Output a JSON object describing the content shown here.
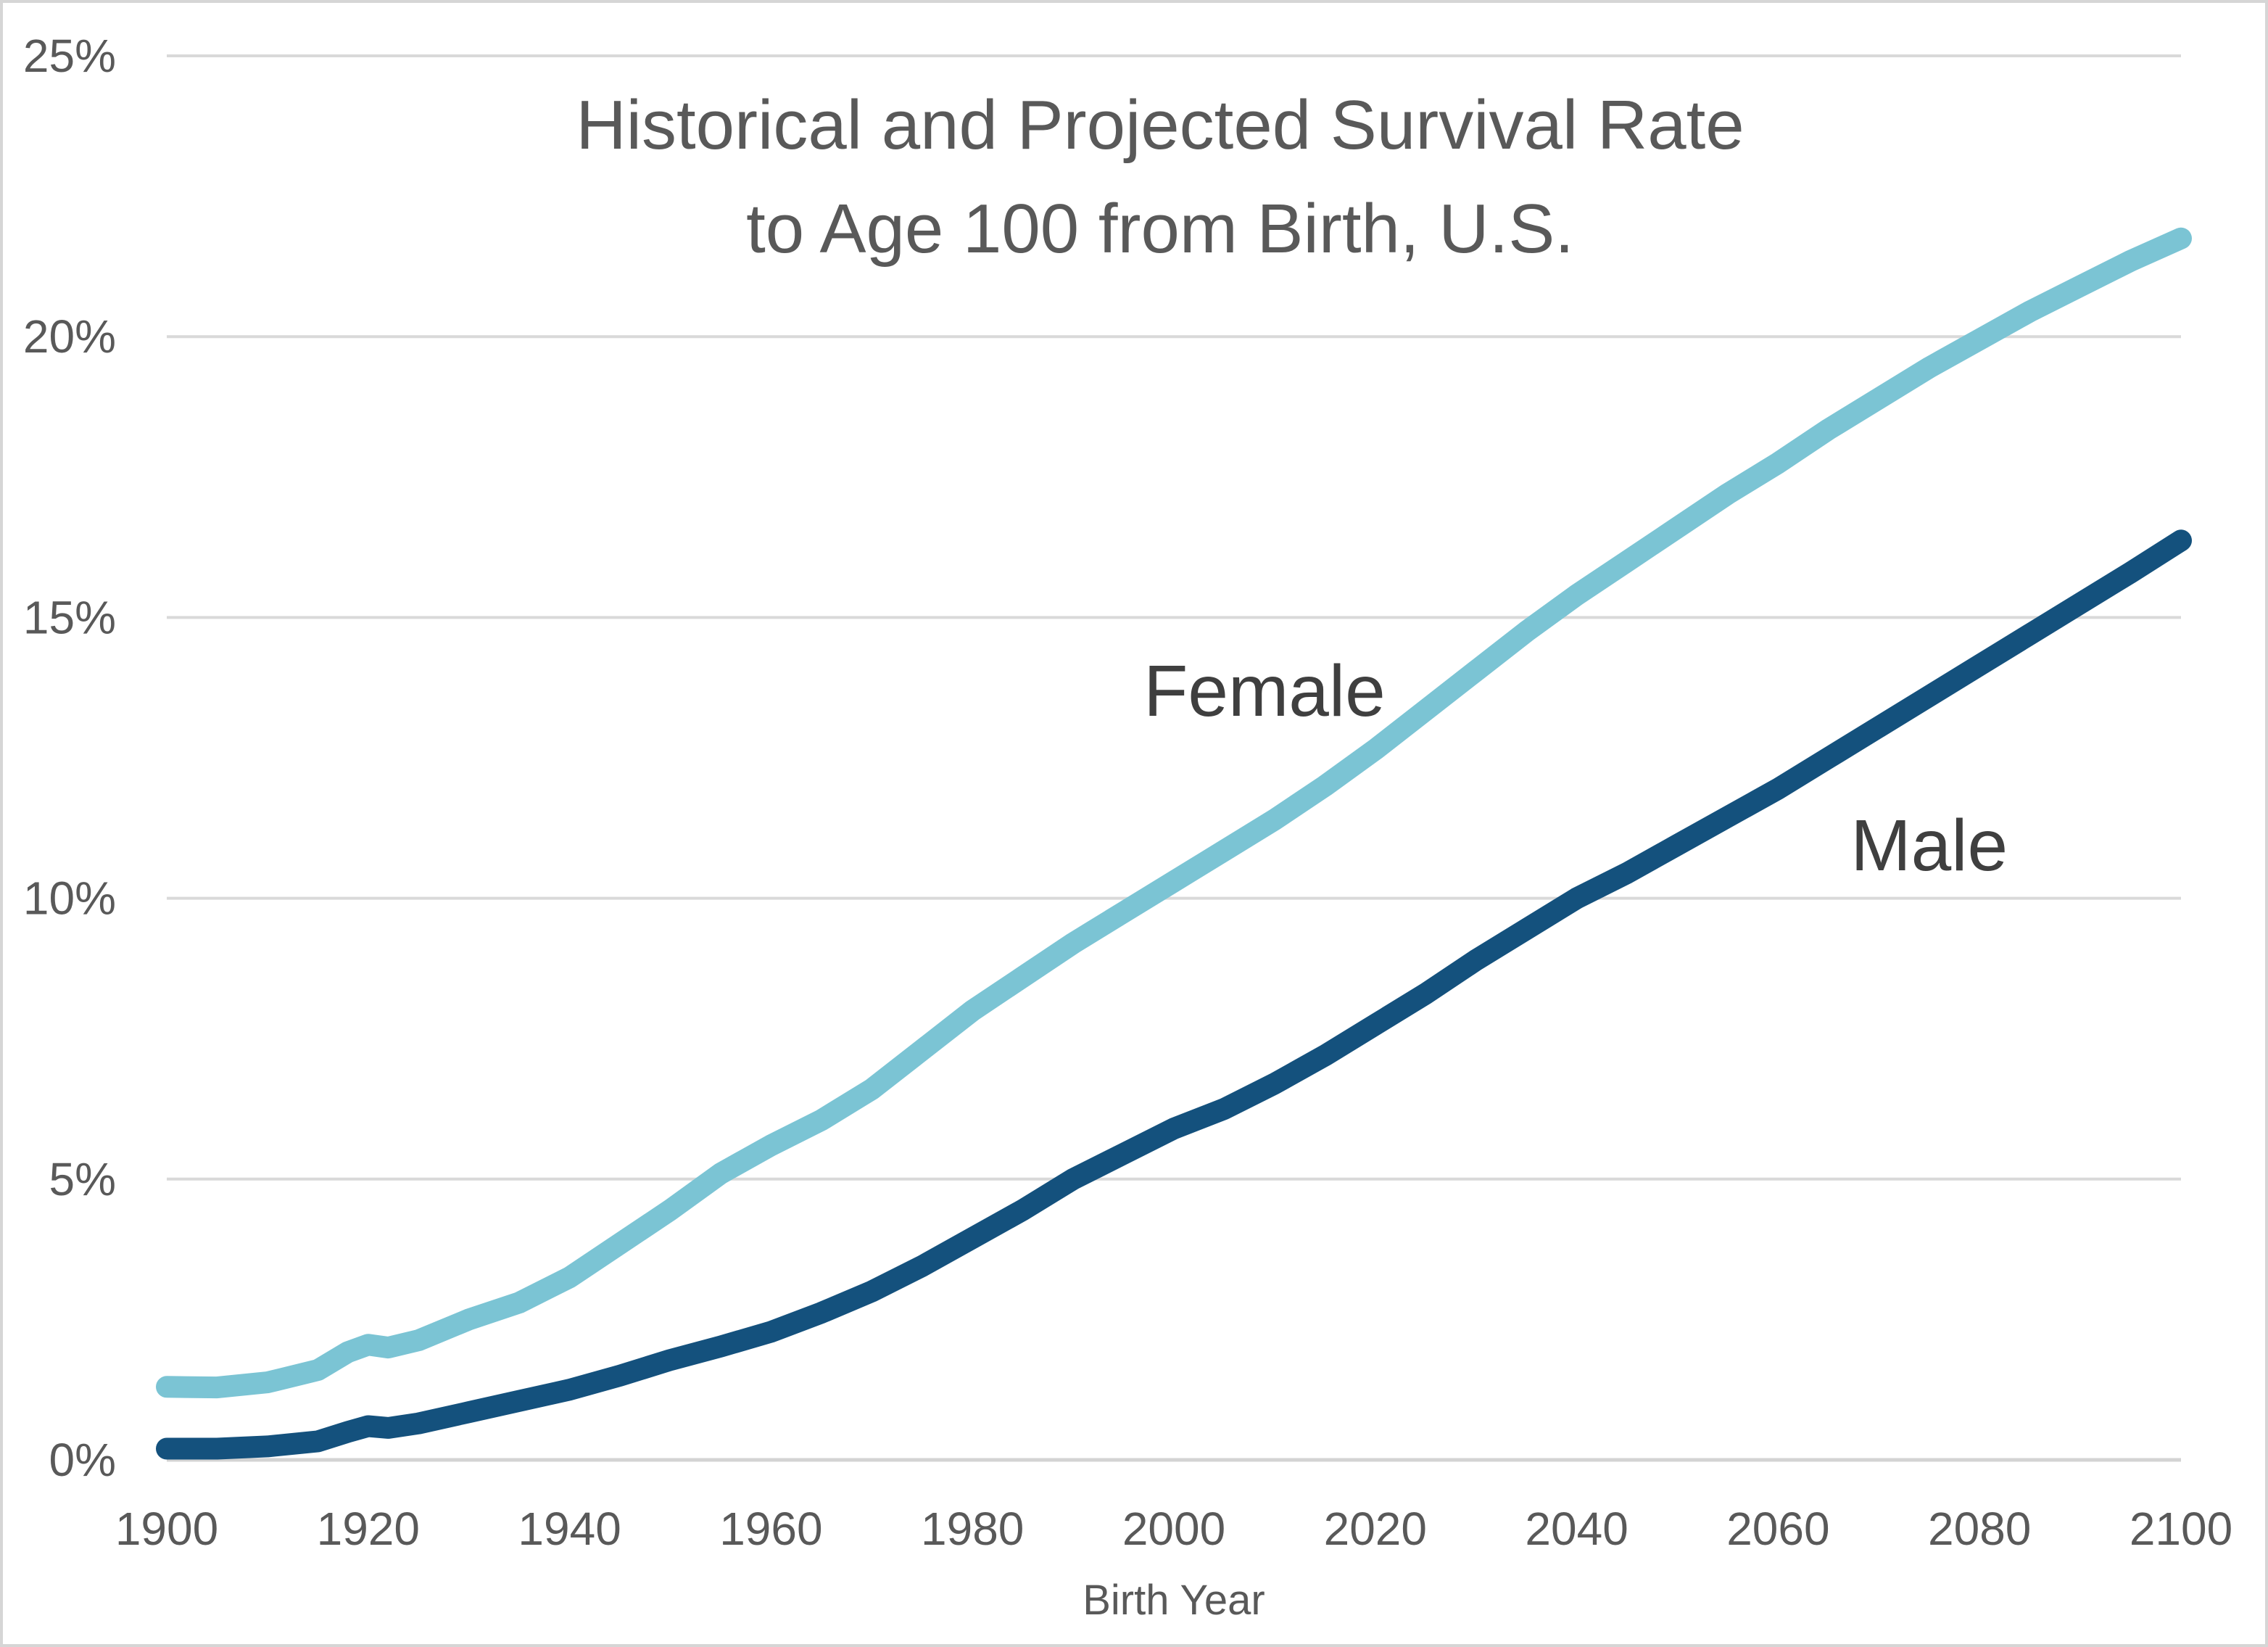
{
  "page": {
    "background": "#ffffff",
    "frame_border_color": "#d6d6d6"
  },
  "chart_data": {
    "type": "line",
    "title_lines": [
      "Historical and Projected Survival Rate",
      "to Age 100 from Birth, U.S."
    ],
    "xlabel": "Birth Year",
    "ylabel": "",
    "xlim": [
      1900,
      2100
    ],
    "ylim": [
      0,
      25
    ],
    "grid": true,
    "legend_position": "inline-labels",
    "grid_color": "#d9d9d9",
    "axis_line_color": "#d3d3d3",
    "title_color": "#595959",
    "tick_label_color": "#595959",
    "series_label_color": "#3f3f3f",
    "x_ticks": [
      {
        "value": 1900,
        "label": "1900"
      },
      {
        "value": 1920,
        "label": "1920"
      },
      {
        "value": 1940,
        "label": "1940"
      },
      {
        "value": 1960,
        "label": "1960"
      },
      {
        "value": 1980,
        "label": "1980"
      },
      {
        "value": 2000,
        "label": "2000"
      },
      {
        "value": 2020,
        "label": "2020"
      },
      {
        "value": 2040,
        "label": "2040"
      },
      {
        "value": 2060,
        "label": "2060"
      },
      {
        "value": 2080,
        "label": "2080"
      },
      {
        "value": 2100,
        "label": "2100"
      }
    ],
    "y_ticks": [
      {
        "value": 0,
        "label": "0%"
      },
      {
        "value": 5,
        "label": "5%"
      },
      {
        "value": 10,
        "label": "10%"
      },
      {
        "value": 15,
        "label": "15%"
      },
      {
        "value": 20,
        "label": "20%"
      },
      {
        "value": 25,
        "label": "25%"
      }
    ],
    "x": [
      1900,
      1905,
      1910,
      1915,
      1918,
      1920,
      1922,
      1925,
      1930,
      1935,
      1940,
      1945,
      1950,
      1955,
      1960,
      1965,
      1970,
      1975,
      1980,
      1985,
      1990,
      1995,
      2000,
      2005,
      2010,
      2015,
      2020,
      2025,
      2030,
      2035,
      2040,
      2045,
      2050,
      2055,
      2060,
      2065,
      2070,
      2075,
      2080,
      2085,
      2090,
      2095,
      2100
    ],
    "series": [
      {
        "name": "Female",
        "color": "#7bc4d4",
        "label_position": {
          "year": 2009,
          "value": 13.7
        },
        "values": [
          1.3,
          1.29,
          1.38,
          1.6,
          1.92,
          2.05,
          2.0,
          2.13,
          2.5,
          2.8,
          3.25,
          3.85,
          4.45,
          5.1,
          5.6,
          6.05,
          6.6,
          7.3,
          8.0,
          8.6,
          9.2,
          9.75,
          10.3,
          10.85,
          11.4,
          12.0,
          12.65,
          13.35,
          14.05,
          14.75,
          15.4,
          16.0,
          16.6,
          17.2,
          17.75,
          18.35,
          18.9,
          19.45,
          19.95,
          20.45,
          20.9,
          21.35,
          21.75
        ]
      },
      {
        "name": "Male",
        "color": "#14517d",
        "label_position": {
          "year": 2075,
          "value": 10.95
        },
        "values": [
          0.2,
          0.2,
          0.24,
          0.33,
          0.5,
          0.6,
          0.57,
          0.65,
          0.85,
          1.05,
          1.25,
          1.5,
          1.78,
          2.02,
          2.28,
          2.62,
          3.0,
          3.45,
          3.95,
          4.45,
          5.0,
          5.45,
          5.9,
          6.25,
          6.7,
          7.2,
          7.75,
          8.3,
          8.9,
          9.45,
          10.0,
          10.45,
          10.95,
          11.45,
          11.95,
          12.5,
          13.05,
          13.6,
          14.15,
          14.7,
          15.25,
          15.8,
          16.37
        ]
      }
    ]
  }
}
